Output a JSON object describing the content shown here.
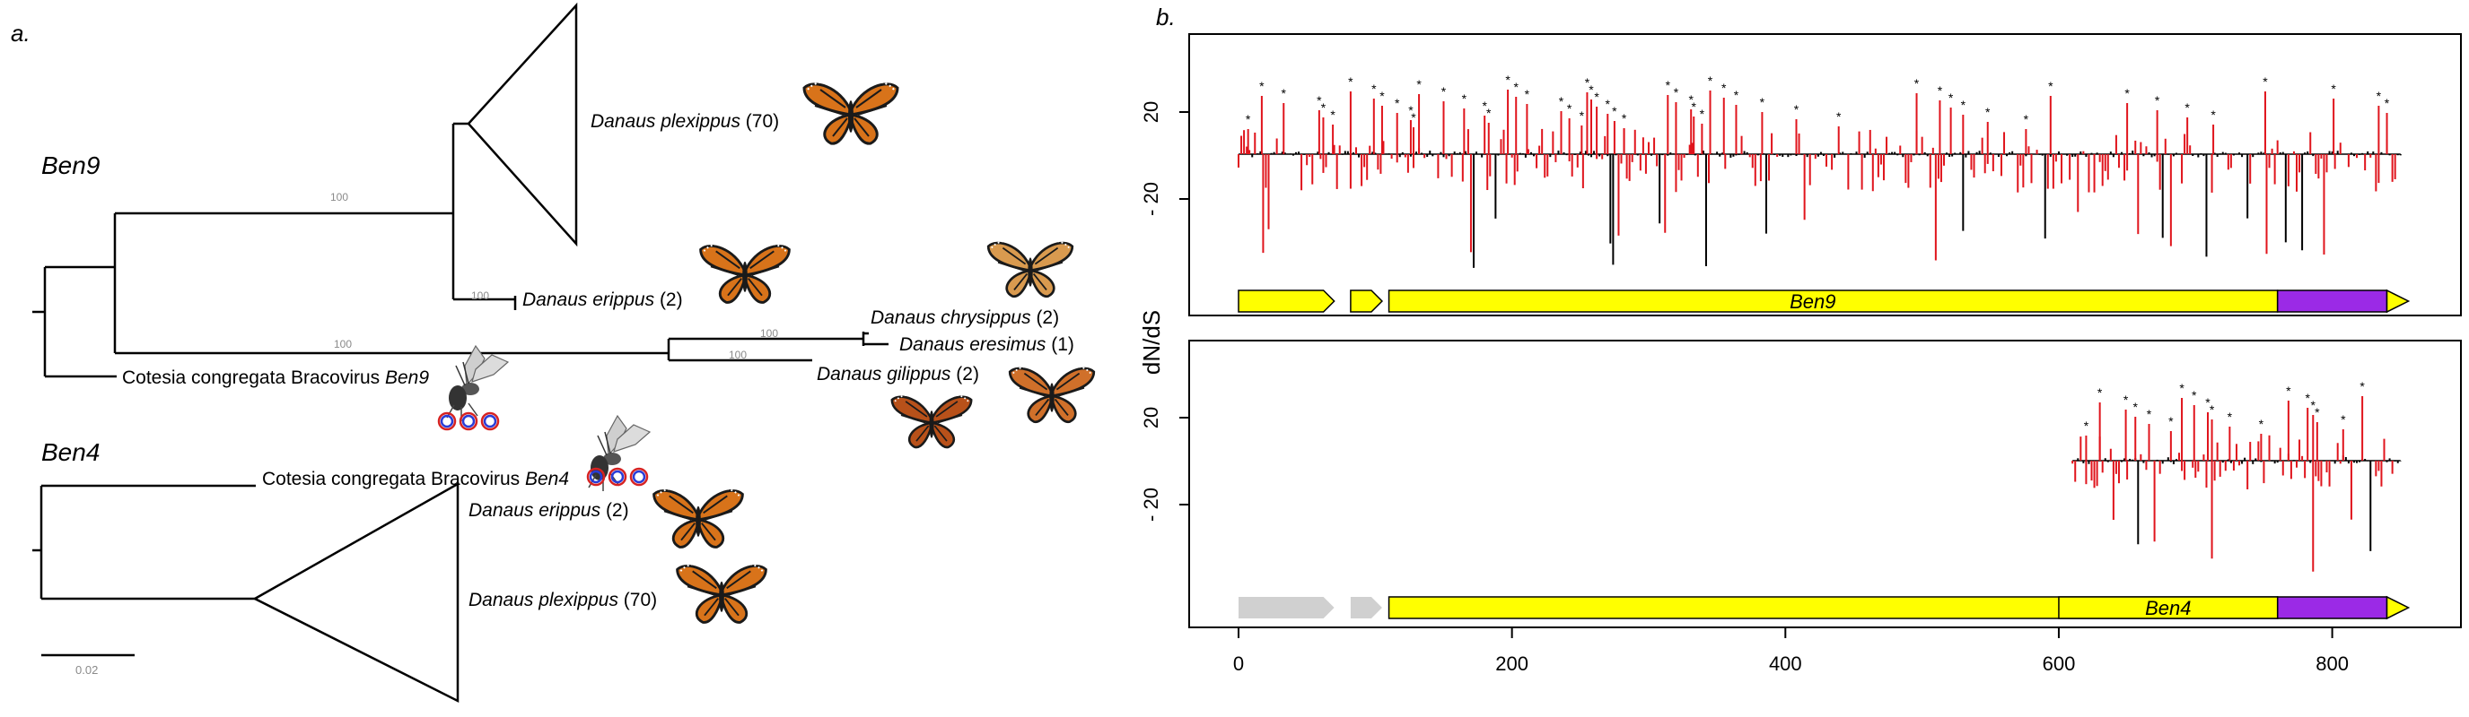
{
  "panel_a": {
    "label": "a.",
    "clades": [
      {
        "id": "ben9",
        "label": "Ben9"
      },
      {
        "id": "ben4",
        "label": "Ben4"
      }
    ],
    "bootstrap_values": [
      "100",
      "100",
      "100",
      "100",
      "100"
    ],
    "ben9_taxa": [
      {
        "species": "Danaus plexippus",
        "count": "(70)"
      },
      {
        "species": "Danaus erippus",
        "count": "(2)"
      },
      {
        "species": "Danaus chrysippus",
        "count": "(2)"
      },
      {
        "species": "Danaus eresimus",
        "count": "(1)"
      },
      {
        "species": "Danaus gilippus",
        "count": "(2)"
      },
      {
        "species": "Cotesia congregata Bracovirus",
        "gene": "Ben9"
      }
    ],
    "ben4_taxa": [
      {
        "species": "Cotesia congregata Bracovirus",
        "gene": "Ben4"
      },
      {
        "species": "Danaus erippus",
        "count": "(2)"
      },
      {
        "species": "Danaus plexippus",
        "count": "(70)"
      }
    ],
    "scale_bar": "0.02",
    "colors": {
      "monarch": "#d8731a",
      "wing_vein": "#1a1a1a",
      "circle_outer": "#d62222",
      "circle_inner": "#2a3cd6"
    }
  },
  "panel_b": {
    "label": "b.",
    "chart_data": {
      "type": "bar",
      "ylabel": "dN/dS",
      "xticks": [
        "0",
        "200",
        "400",
        "600",
        "800"
      ],
      "xlim": [
        0,
        860
      ],
      "yticks": [
        "20",
        "-20"
      ],
      "colors": {
        "selection": "#e0141c",
        "neutral": "#000000",
        "domain": "#ffff00",
        "domain2": "#9b2ae6",
        "absent": "#d0d0d0"
      },
      "panels": [
        {
          "gene": "Ben9",
          "codon_range": [
            0,
            850
          ],
          "star_codons": [
            7,
            17,
            33,
            59,
            62,
            69,
            82,
            99,
            105,
            116,
            126,
            128,
            132,
            150,
            165,
            180,
            183,
            197,
            203,
            211,
            236,
            242,
            251,
            255,
            258,
            262,
            270,
            275,
            282,
            314,
            320,
            331,
            333,
            339,
            345,
            355,
            364,
            383,
            408,
            439,
            496,
            513,
            521,
            530,
            548,
            576,
            594,
            650,
            672,
            694,
            713,
            751,
            801,
            834,
            840
          ]
        },
        {
          "gene": "Ben4",
          "codon_range": [
            610,
            850
          ],
          "star_codons": [
            620,
            630,
            649,
            656,
            666,
            682,
            690,
            699,
            709,
            712,
            725,
            748,
            768,
            782,
            786,
            789,
            808,
            822
          ]
        }
      ]
    }
  }
}
